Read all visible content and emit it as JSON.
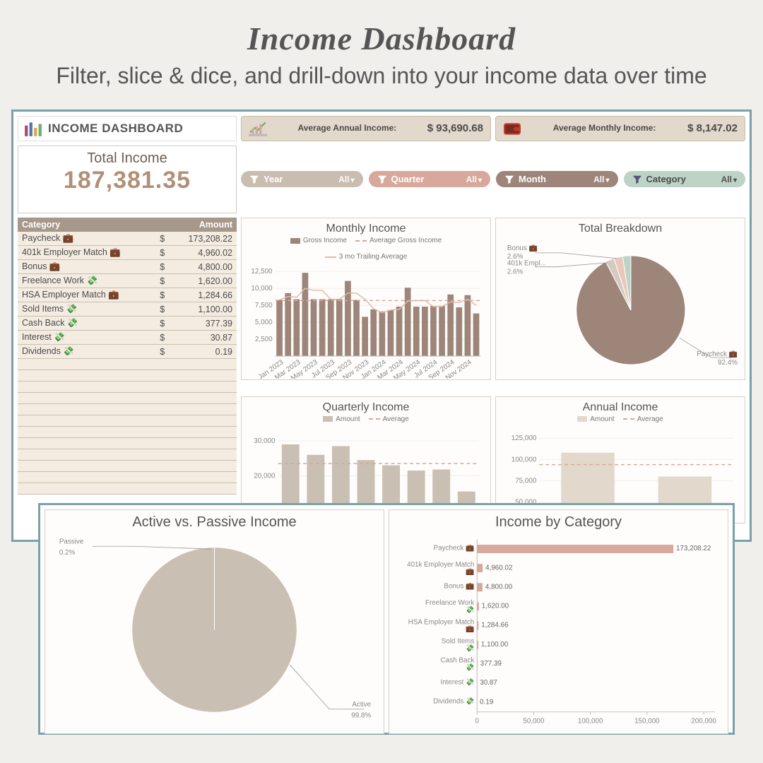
{
  "hero": {
    "title": "Income Dashboard",
    "subtitle": "Filter, slice & dice, and drill-down into your income data over time"
  },
  "header": {
    "label": "INCOME DASHBOARD"
  },
  "kpi_annual": {
    "label": "Average Annual Income:",
    "value": "$ 93,690.68"
  },
  "kpi_monthly": {
    "label": "Average Monthly Income:",
    "value": "$ 8,147.02"
  },
  "total": {
    "label": "Total Income",
    "value": "187,381.35"
  },
  "filters": {
    "year": {
      "label": "Year",
      "value": "All",
      "bg": "#c9bdb0"
    },
    "quarter": {
      "label": "Quarter",
      "value": "All",
      "bg": "#d8a89c"
    },
    "month": {
      "label": "Month",
      "value": "All",
      "bg": "#9d857a"
    },
    "category": {
      "label": "Category",
      "value": "All",
      "bg": "#bcd3c6"
    }
  },
  "table": {
    "headers": [
      "Category",
      "",
      "Amount"
    ],
    "rows": [
      {
        "cat": "Paycheck 💼",
        "amt": "173,208.22"
      },
      {
        "cat": "401k Employer Match 💼",
        "amt": "4,960.02"
      },
      {
        "cat": "Bonus 💼",
        "amt": "4,800.00"
      },
      {
        "cat": "Freelance Work 💸",
        "amt": "1,620.00"
      },
      {
        "cat": "HSA Employer Match 💼",
        "amt": "1,284.66"
      },
      {
        "cat": "Sold Items 💸",
        "amt": "1,100.00"
      },
      {
        "cat": "Cash Back 💸",
        "amt": "377.39"
      },
      {
        "cat": "Interest 💸",
        "amt": "30.87"
      },
      {
        "cat": "Dividends 💸",
        "amt": "0.19"
      }
    ],
    "empty_rows": 12
  },
  "monthly_chart": {
    "title": "Monthly Income",
    "type": "bar+line",
    "legend": [
      "Gross Income",
      "Average Gross Income",
      "3 mo Trailing Average"
    ],
    "bar_color": "#9d857a",
    "avg_color": "#d8a89c",
    "trail_color": "#e2b9a7",
    "y_ticks": [
      2500,
      5000,
      7500,
      10000,
      12500
    ],
    "ylim": [
      0,
      13000
    ],
    "x_labels": [
      "Jan 2023",
      "Mar 2023",
      "May 2023",
      "Jul 2023",
      "Sep 2023",
      "Nov 2023",
      "Jan 2024",
      "Mar 2024",
      "May 2024",
      "Jul 2024",
      "Sep 2024",
      "Nov 2024"
    ],
    "values": [
      8300,
      9300,
      8400,
      12300,
      8400,
      8400,
      8400,
      8400,
      11100,
      8300,
      5800,
      6900,
      6600,
      6800,
      7300,
      10100,
      7300,
      7300,
      7400,
      7400,
      9100,
      7200,
      9000,
      6300
    ],
    "average": 8200,
    "trailing": [
      8300,
      8800,
      8700,
      10000,
      9700,
      9700,
      8400,
      8400,
      9300,
      9300,
      8400,
      7000,
      6400,
      6800,
      6900,
      8100,
      8200,
      8200,
      7300,
      7300,
      8000,
      7900,
      8400,
      7500
    ]
  },
  "breakdown_pie": {
    "title": "Total Breakdown",
    "type": "pie",
    "slices": [
      {
        "label": "Paycheck 💼",
        "pct": 92.4,
        "color": "#9d857a"
      },
      {
        "label": "401k Empl...",
        "pct": 2.6,
        "color": "#d6cbbf"
      },
      {
        "label": "Bonus 💼",
        "pct": 2.6,
        "color": "#e9c7bb"
      },
      {
        "label": "other",
        "pct": 2.4,
        "color": "#bcd3c6"
      }
    ],
    "labels": {
      "bonus": {
        "text": "Bonus 💼",
        "sub": "2.6%"
      },
      "match": {
        "text": "401k Empl...",
        "sub": "2.6%"
      },
      "paychk": {
        "text": "Paycheck 💼",
        "sub": "92.4%"
      }
    }
  },
  "quarterly_chart": {
    "title": "Quarterly Income",
    "type": "bar",
    "legend": [
      "Amount",
      "Average"
    ],
    "bar_color": "#cabfb3",
    "avg_color": "#d8a89c",
    "y_ticks": [
      20000,
      30000
    ],
    "ylim": [
      10000,
      32000
    ],
    "values": [
      29000,
      26000,
      28500,
      24500,
      23000,
      21500,
      21800,
      15500
    ],
    "average": 23500
  },
  "annual_chart": {
    "title": "Annual Income",
    "type": "bar",
    "legend": [
      "Amount",
      "Average"
    ],
    "bar_color": "#e2d8cb",
    "avg_color": "#d8a89c",
    "y_ticks": [
      50000,
      75000,
      100000,
      125000
    ],
    "ylim": [
      40000,
      130000
    ],
    "values": [
      108000,
      80000
    ],
    "average": 94000
  },
  "active_passive": {
    "title": "Active vs. Passive Income",
    "type": "pie",
    "color": "#cabfb3",
    "active": {
      "label": "Active",
      "pct": "99.8%"
    },
    "passive": {
      "label": "Passive",
      "pct": "0.2%"
    }
  },
  "by_category": {
    "title": "Income by Category",
    "type": "hbar",
    "bar_color": "#d8a89c",
    "x_ticks": [
      0,
      50000,
      100000,
      150000,
      200000
    ],
    "xlim": [
      0,
      210000
    ],
    "rows": [
      {
        "label": "Paycheck 💼",
        "val": 173208.22,
        "txt": "173,208.22"
      },
      {
        "label": "401k Employer Match 💼",
        "val": 4960.02,
        "txt": "4,960.02"
      },
      {
        "label": "Bonus 💼",
        "val": 4800.0,
        "txt": "4,800.00"
      },
      {
        "label": "Freelance Work 💸",
        "val": 1620.0,
        "txt": "1,620.00"
      },
      {
        "label": "HSA Employer Match 💼",
        "val": 1284.66,
        "txt": "1,284.66"
      },
      {
        "label": "Sold Items 💸",
        "val": 1100.0,
        "txt": "1,100.00"
      },
      {
        "label": "Cash Back 💸",
        "val": 377.39,
        "txt": "377.39"
      },
      {
        "label": "Interest 💸",
        "val": 30.87,
        "txt": "30.87"
      },
      {
        "label": "Dividends 💸",
        "val": 0.19,
        "txt": "0.19"
      }
    ]
  }
}
